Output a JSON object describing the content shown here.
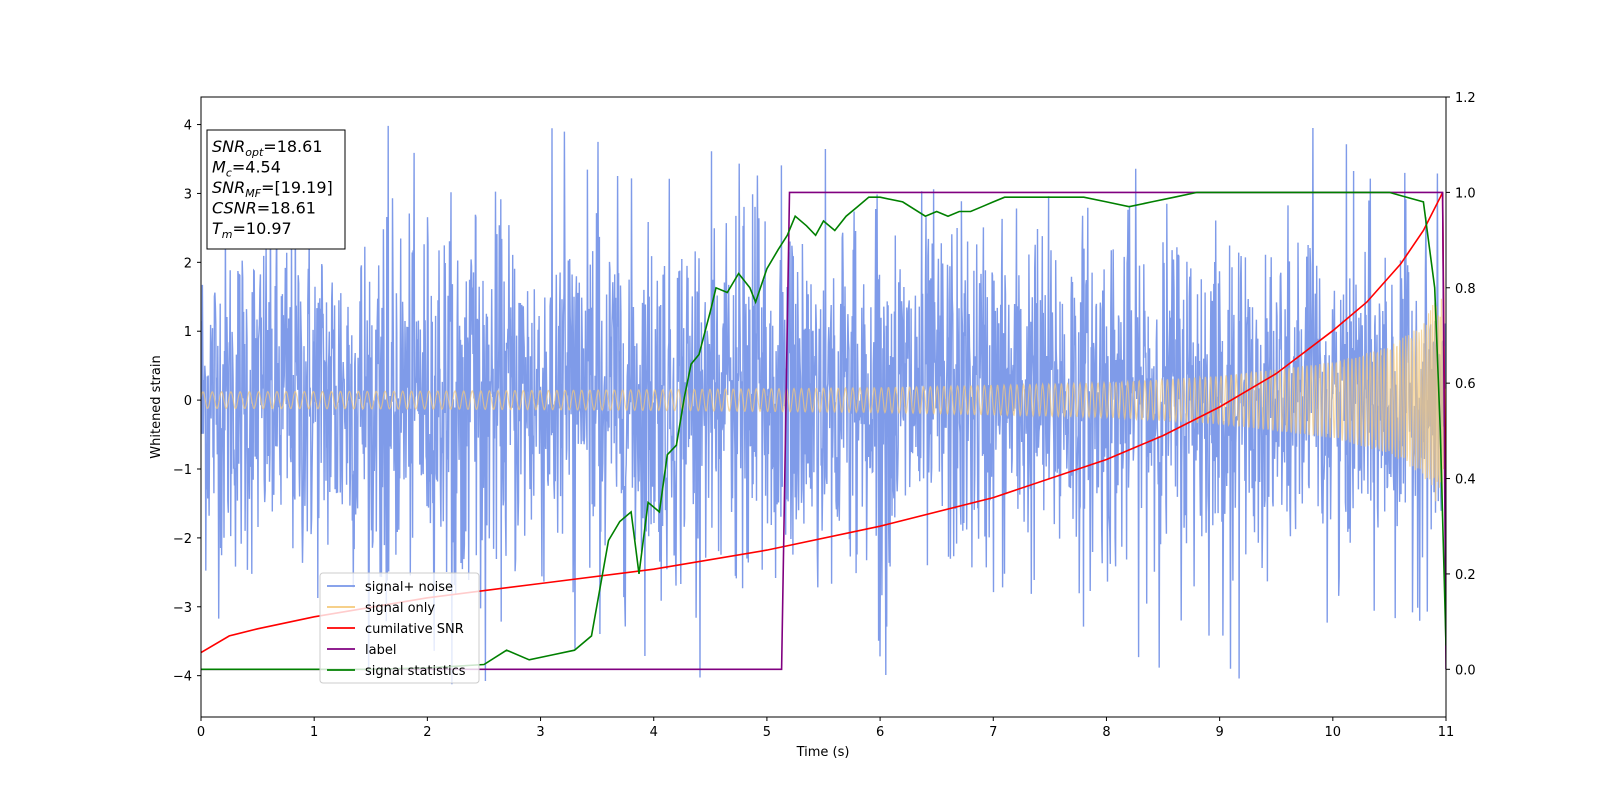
{
  "chart_data": {
    "type": "line",
    "xlabel": "Time (s)",
    "ylabel": "Whitened strain",
    "xlim": [
      0,
      11
    ],
    "ylim_left": [
      -4.6,
      4.4
    ],
    "ylim_right": [
      -0.1,
      1.2
    ],
    "x_ticks": [
      "0",
      "1",
      "2",
      "3",
      "4",
      "5",
      "6",
      "7",
      "8",
      "9",
      "10",
      "11"
    ],
    "y_left_ticks": [
      "4",
      "3",
      "2",
      "1",
      "0",
      "−1",
      "−2",
      "−3",
      "−4"
    ],
    "y_right_ticks": [
      "1.2",
      "1.0",
      "0.8",
      "0.6",
      "0.4",
      "0.2",
      "0.0"
    ],
    "legend_position": "lower-left",
    "legend": [
      {
        "name": "signal+ noise",
        "color": "#7896e8"
      },
      {
        "name": "signal only",
        "color": "#f5c97a"
      },
      {
        "name": "cumilative SNR",
        "color": "#ff0000"
      },
      {
        "name": "label",
        "color": "#800080"
      },
      {
        "name": "signal statistics",
        "color": "#008000"
      }
    ],
    "annotation": {
      "lines": [
        {
          "var": "SNR",
          "sub": "opt",
          "text": "=18.61"
        },
        {
          "var": "M",
          "sub": "c",
          "text": "=4.54"
        },
        {
          "var": "SNR",
          "sub": "MF",
          "text": "=[19.19]"
        },
        {
          "var": "CSNR",
          "sub": "",
          "text": "=18.61"
        },
        {
          "var": "T",
          "sub": "m",
          "text": "=10.97"
        }
      ]
    },
    "series": [
      {
        "name": "signal+ noise",
        "axis": "left",
        "noise_band": {
          "x": [
            0,
            1,
            2,
            3,
            4,
            5,
            6,
            7,
            8,
            9,
            10,
            10.5,
            11
          ],
          "upper": [
            2.4,
            2.6,
            2.6,
            2.6,
            2.7,
            2.7,
            2.6,
            2.6,
            2.6,
            2.5,
            2.4,
            2.5,
            2.2
          ],
          "lower": [
            -2.4,
            -2.5,
            -2.5,
            -2.5,
            -2.6,
            -2.6,
            -2.5,
            -2.5,
            -2.5,
            -2.4,
            -2.5,
            -2.6,
            -2.3
          ],
          "peak_max": 4.0,
          "peak_min": -4.15
        }
      },
      {
        "name": "signal only",
        "axis": "left",
        "envelope": {
          "x": [
            0,
            2,
            4,
            6,
            8,
            9,
            10,
            10.5,
            10.8,
            10.97,
            11
          ],
          "amp": [
            0.12,
            0.13,
            0.15,
            0.18,
            0.25,
            0.35,
            0.55,
            0.78,
            1.1,
            1.7,
            0.0
          ]
        }
      },
      {
        "name": "cumilative SNR",
        "axis": "right",
        "x": [
          0,
          0.25,
          0.5,
          1,
          1.5,
          2,
          3,
          4,
          5,
          6,
          7,
          8,
          8.5,
          9,
          9.5,
          10,
          10.3,
          10.6,
          10.8,
          10.95,
          10.97,
          11
        ],
        "values": [
          0.035,
          0.07,
          0.085,
          0.11,
          0.13,
          0.15,
          0.18,
          0.21,
          0.25,
          0.3,
          0.36,
          0.44,
          0.49,
          0.55,
          0.62,
          0.71,
          0.77,
          0.85,
          0.92,
          0.99,
          1.0,
          0.2
        ]
      },
      {
        "name": "label",
        "axis": "right",
        "x": [
          0,
          5.13,
          5.2,
          10.97,
          11
        ],
        "values": [
          0.0,
          0.0,
          1.0,
          1.0,
          0.0
        ]
      },
      {
        "name": "signal statistics",
        "axis": "right",
        "x": [
          0,
          0.5,
          1,
          1.5,
          2,
          2.5,
          2.7,
          2.9,
          3.1,
          3.3,
          3.45,
          3.6,
          3.7,
          3.8,
          3.87,
          3.95,
          4.05,
          4.12,
          4.2,
          4.27,
          4.33,
          4.4,
          4.5,
          4.55,
          4.65,
          4.75,
          4.85,
          4.9,
          5.0,
          5.1,
          5.18,
          5.25,
          5.35,
          5.43,
          5.5,
          5.6,
          5.7,
          5.8,
          5.9,
          6.0,
          6.2,
          6.4,
          6.5,
          6.6,
          6.7,
          6.8,
          6.9,
          7.0,
          7.1,
          7.2,
          7.3,
          7.5,
          7.8,
          8.0,
          8.2,
          8.4,
          8.6,
          8.8,
          9.0,
          9.5,
          10.0,
          10.5,
          10.8,
          10.9,
          10.95,
          11.0
        ],
        "values": [
          0.0,
          0.0,
          0.0,
          0.0,
          0.003,
          0.01,
          0.04,
          0.02,
          0.03,
          0.04,
          0.07,
          0.27,
          0.31,
          0.33,
          0.2,
          0.35,
          0.33,
          0.45,
          0.47,
          0.57,
          0.64,
          0.66,
          0.75,
          0.8,
          0.79,
          0.83,
          0.8,
          0.77,
          0.84,
          0.88,
          0.91,
          0.95,
          0.93,
          0.91,
          0.94,
          0.92,
          0.95,
          0.97,
          0.99,
          0.99,
          0.98,
          0.95,
          0.96,
          0.95,
          0.96,
          0.96,
          0.97,
          0.98,
          0.99,
          0.99,
          0.99,
          0.99,
          0.99,
          0.98,
          0.97,
          0.98,
          0.99,
          1.0,
          1.0,
          1.0,
          1.0,
          1.0,
          0.98,
          0.8,
          0.5,
          0.05
        ]
      }
    ]
  }
}
